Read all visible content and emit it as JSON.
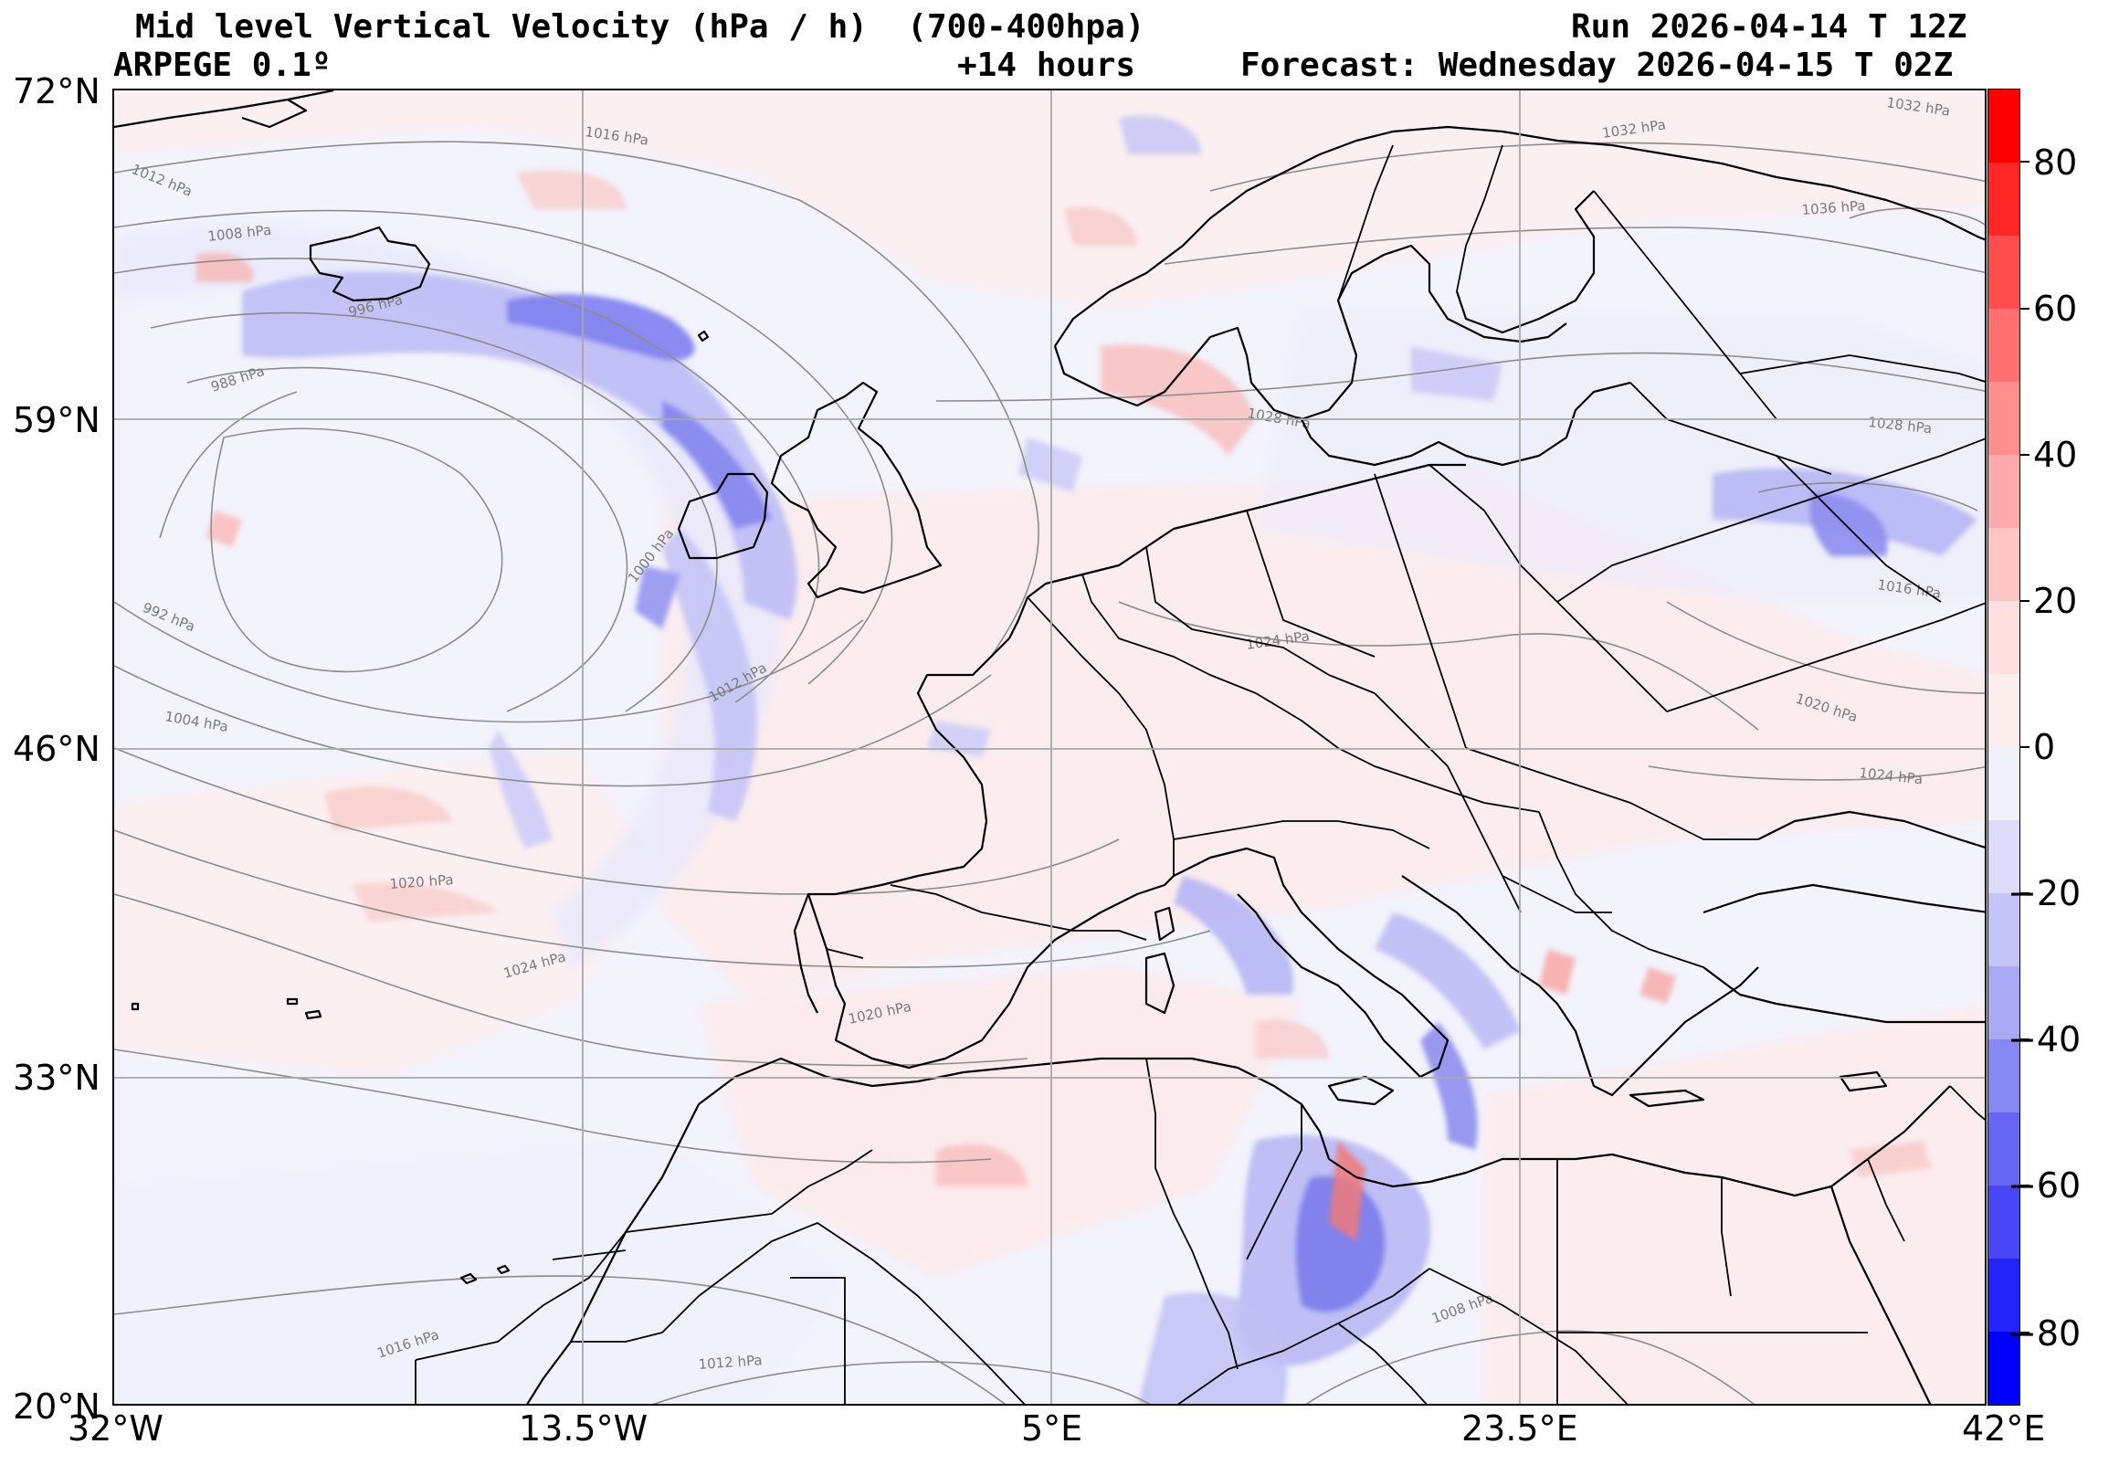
{
  "header": {
    "title": "Mid level Vertical Velocity (hPa / h)  (700-400hpa)",
    "model": "ARPEGE 0.1º",
    "lead": "+14 hours",
    "run": "Run 2026-04-14 T 12Z",
    "forecast": "Forecast: Wednesday 2026-04-15 T 02Z"
  },
  "axes": {
    "lon_labels": [
      "32°W",
      "13.5°W",
      "5°E",
      "23.5°E",
      "42°E"
    ],
    "lat_labels": [
      "72°N",
      "59°N",
      "46°N",
      "33°N",
      "20°N"
    ],
    "lon_range": [
      -32,
      42
    ],
    "lat_range": [
      20,
      72
    ]
  },
  "colorbar": {
    "tick_labels": [
      "80",
      "60",
      "40",
      "20",
      "0",
      "−20",
      "−40",
      "−60",
      "−80"
    ],
    "range": [
      -90,
      90
    ],
    "colors": {
      "positive_strong": "#ff0000",
      "positive_weak": "#ffe4e4",
      "neutral": "#f1f1fb",
      "negative_weak": "#d8d8ff",
      "negative_strong": "#0000ff"
    }
  },
  "isobars": {
    "labels": [
      "1016 hPa",
      "1012 hPa",
      "1008 hPa",
      "996 hPa",
      "988 hPa",
      "1000 hPa",
      "992 hPa",
      "1004 hPa",
      "1012 hPa",
      "1020 hPa",
      "1024 hPa",
      "1020 hPa",
      "1016 hPa",
      "1012 hPa",
      "1008 hPa",
      "1024 hPa",
      "1028 hPa",
      "1032 hPa",
      "1036 hPa",
      "1032 hPa",
      "1028 hPa",
      "1016 hPa",
      "1020 hPa",
      "1024 hPa"
    ]
  }
}
